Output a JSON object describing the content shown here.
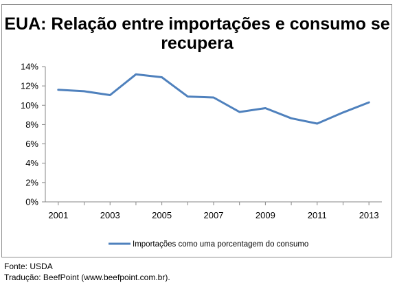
{
  "source": "Fonte: USDA",
  "translation": "Tradução: BeefPoint (www.beefpoint.com.br).",
  "chart_data": {
    "type": "line",
    "title": "EUA: Relação entre importações e consumo se recupera",
    "title_lines": [
      "EUA: Relação entre importações e consumo se",
      "recupera"
    ],
    "xlabel": "",
    "ylabel": "",
    "x": [
      2001,
      2002,
      2003,
      2004,
      2005,
      2006,
      2007,
      2008,
      2009,
      2010,
      2011,
      2012,
      2013
    ],
    "x_tick_labels": [
      "2001",
      "2003",
      "2005",
      "2007",
      "2009",
      "2011",
      "2013"
    ],
    "x_tick_values": [
      2001,
      2003,
      2005,
      2007,
      2009,
      2011,
      2013
    ],
    "xlim": [
      2000.5,
      2013.5
    ],
    "ylim": [
      0,
      14
    ],
    "y_tick_values": [
      0,
      2,
      4,
      6,
      8,
      10,
      12,
      14
    ],
    "y_tick_labels": [
      "0%",
      "2%",
      "4%",
      "6%",
      "8%",
      "10%",
      "12%",
      "14%"
    ],
    "grid": false,
    "legend_position": "bottom",
    "series": [
      {
        "name": "Importações como uma porcentagem do consumo",
        "color": "#4f81bd",
        "values": [
          11.6,
          11.45,
          11.05,
          13.2,
          12.9,
          10.9,
          10.8,
          9.3,
          9.7,
          8.65,
          8.1,
          9.25,
          10.3
        ]
      }
    ]
  }
}
